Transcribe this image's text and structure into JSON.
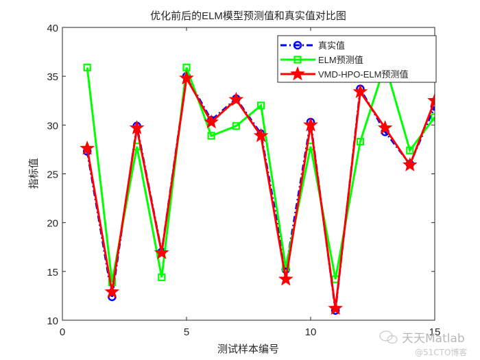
{
  "chart_data": {
    "type": "line",
    "title": "优化前后的ELM模型预测值和真实值对比图",
    "xlabel": "测试样本编号",
    "ylabel": "指标值",
    "xlim": [
      0,
      15
    ],
    "ylim": [
      10,
      40
    ],
    "xticks": [
      0,
      5,
      10,
      15
    ],
    "yticks": [
      10,
      15,
      20,
      25,
      30,
      35,
      40
    ],
    "grid": false,
    "legend_position": "upper right (inside)",
    "x": [
      1,
      2,
      3,
      4,
      5,
      6,
      7,
      8,
      9,
      10,
      11,
      12,
      13,
      14,
      15
    ],
    "series": [
      {
        "name": "真实值",
        "color": "#0000ff",
        "line_style": "dash-dot",
        "marker": "circle",
        "values": [
          27.3,
          12.4,
          29.9,
          17.0,
          35.0,
          30.5,
          32.7,
          29.1,
          15.2,
          30.3,
          11.0,
          33.7,
          29.3,
          26.0,
          31.9
        ]
      },
      {
        "name": "ELM预测值",
        "color": "#00ff00",
        "line_style": "solid",
        "marker": "square",
        "values": [
          35.9,
          13.9,
          27.8,
          14.4,
          35.9,
          28.9,
          29.9,
          32.0,
          15.4,
          27.8,
          14.2,
          28.3,
          36.2,
          27.4,
          30.8
        ]
      },
      {
        "name": "VMD-HPO-ELM预测值",
        "color": "#ff0000",
        "line_style": "solid",
        "marker": "star",
        "values": [
          27.6,
          12.9,
          29.7,
          16.9,
          34.8,
          30.3,
          32.6,
          28.9,
          14.2,
          30.0,
          11.2,
          33.4,
          29.7,
          25.9,
          32.5
        ]
      }
    ]
  },
  "watermark": {
    "line1": "天天Matlab",
    "line2": "@51CTO博客",
    "icon": "wechat-icon"
  }
}
